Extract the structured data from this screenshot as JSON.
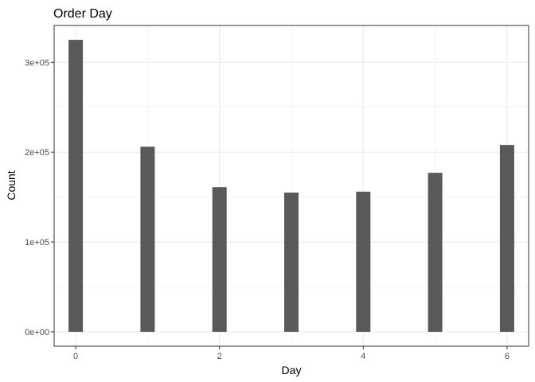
{
  "chart_data": {
    "type": "bar",
    "title": "Order Day",
    "xlabel": "Day",
    "ylabel": "Count",
    "x": [
      0,
      1,
      2,
      3,
      4,
      5,
      6
    ],
    "values": [
      325000,
      206000,
      161000,
      155000,
      156000,
      177000,
      208000
    ],
    "xlim": [
      -0.3,
      6.3
    ],
    "ylim": [
      -16000,
      341000
    ],
    "x_ticks": [
      0,
      2,
      4,
      6
    ],
    "x_tick_labels": [
      "0",
      "2",
      "4",
      "6"
    ],
    "y_ticks": [
      0,
      100000,
      200000,
      300000
    ],
    "y_tick_labels": [
      "0e+00",
      "1e+05",
      "2e+05",
      "3e+05"
    ],
    "bar_color": "#595959",
    "grid": true,
    "grid_color": "#ebebeb",
    "panel_border_color": "#333333"
  }
}
